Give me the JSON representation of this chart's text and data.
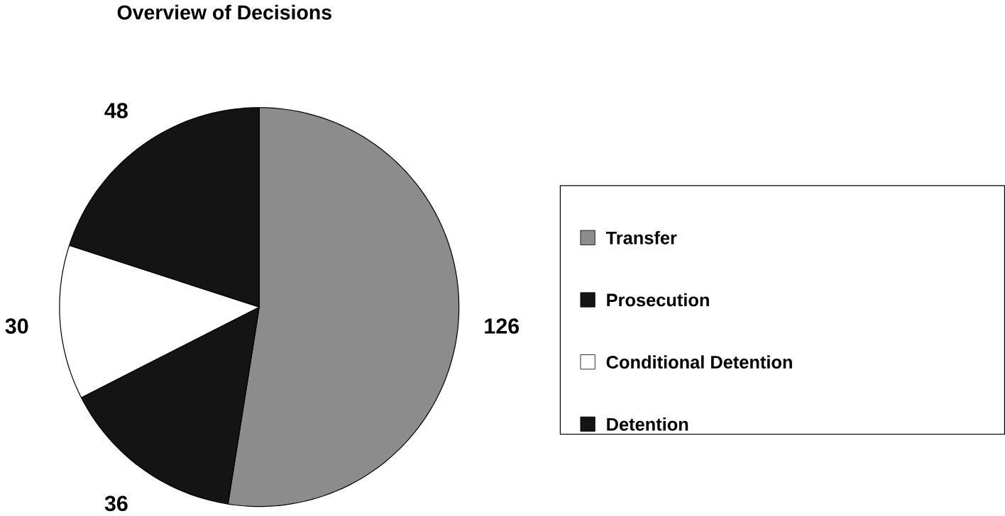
{
  "chart_data": {
    "type": "pie",
    "title": "Overview of Decisions",
    "categories": [
      "Transfer",
      "Prosecution",
      "Conditional Detention",
      "Detention"
    ],
    "values": [
      126,
      36,
      30,
      48
    ],
    "colors": [
      "#8c8c8c",
      "#141414",
      "#ffffff",
      "#141414"
    ],
    "data_labels": true,
    "legend": "right"
  }
}
